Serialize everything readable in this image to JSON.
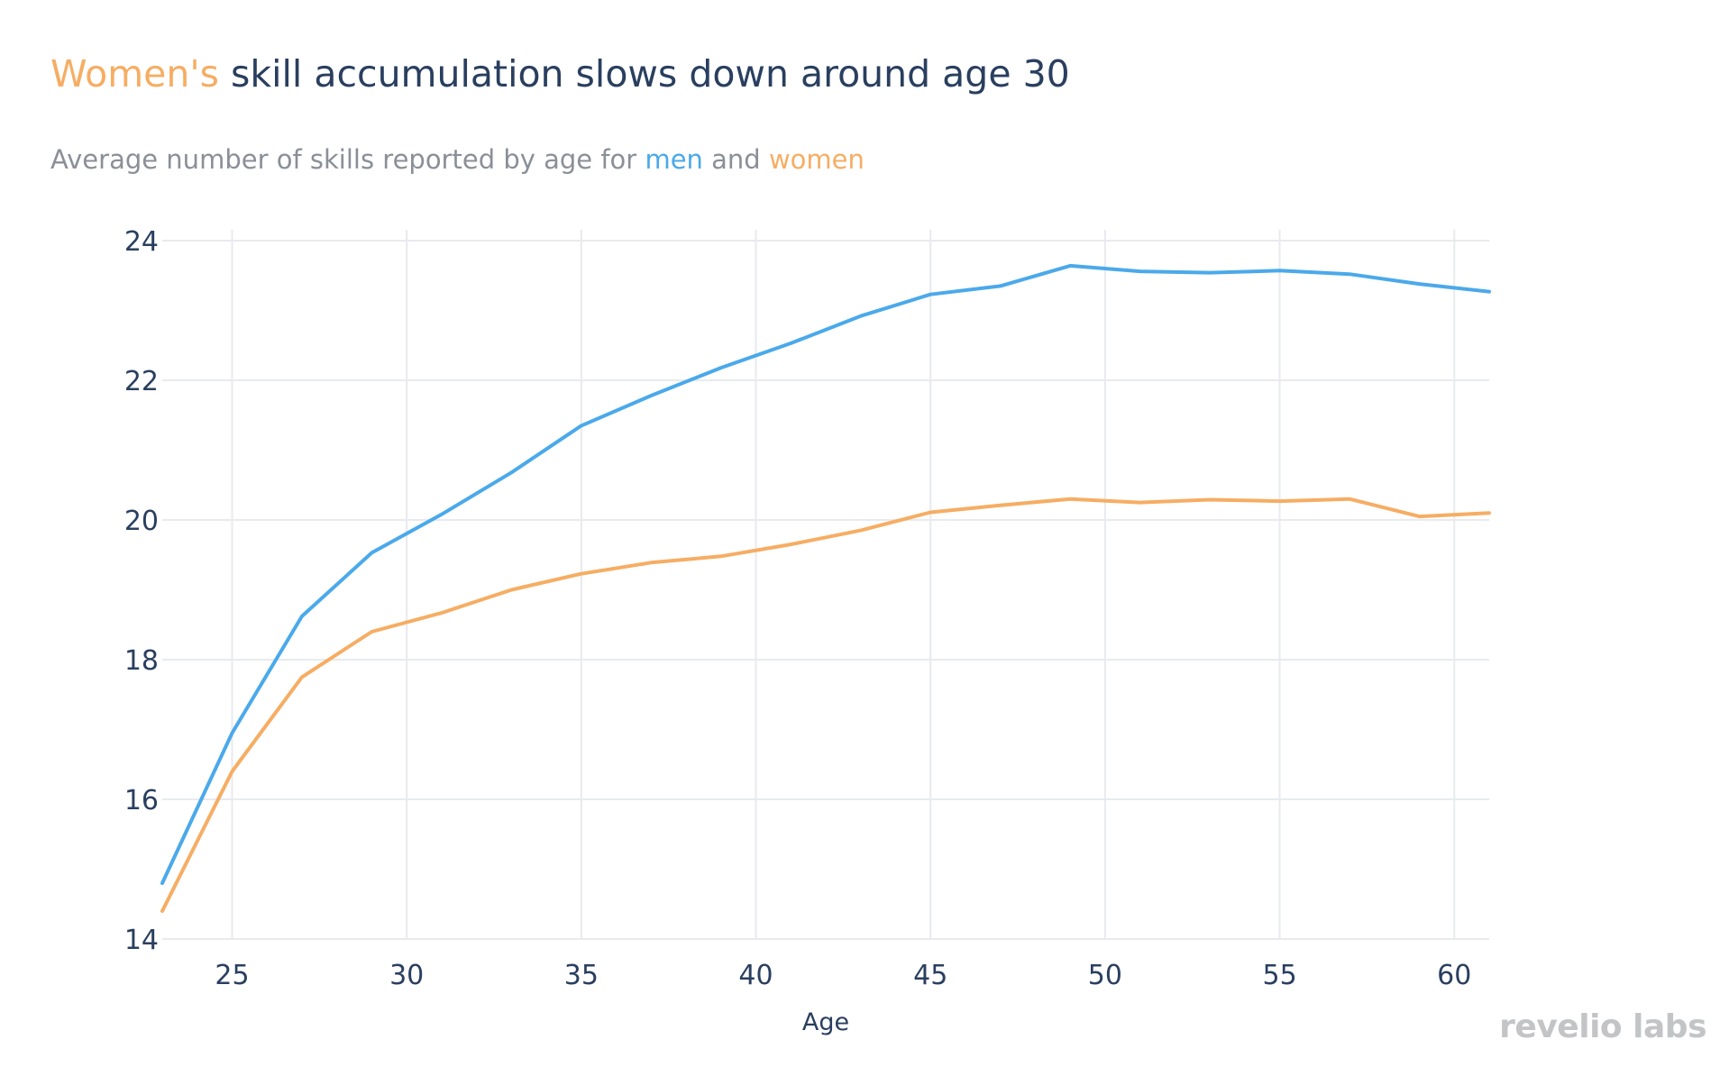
{
  "title": {
    "highlight": "Women's",
    "rest": " skill accumulation slows down around age 30"
  },
  "subtitle": {
    "prefix": "Average number of skills reported by age for ",
    "men": "men",
    "middle": " and ",
    "women": "women"
  },
  "brand": "revelio labs",
  "colors": {
    "men": "#4aa9ea",
    "women": "#f6ad63",
    "title_text": "#2a3f5f",
    "subtitle_text": "#8a8f98",
    "grid": "#e8eaee"
  },
  "chart_data": {
    "type": "line",
    "title": "Women's skill accumulation slows down around age 30",
    "subtitle": "Average number of skills reported by age for men and women",
    "xlabel": "Age",
    "ylabel": "",
    "xlim": [
      23,
      61
    ],
    "ylim": [
      14,
      24
    ],
    "xticks": [
      25,
      30,
      35,
      40,
      45,
      50,
      55,
      60
    ],
    "yticks": [
      14,
      16,
      18,
      20,
      22,
      24
    ],
    "grid": true,
    "x": [
      23,
      25,
      27,
      29,
      31,
      33,
      35,
      37,
      39,
      41,
      43,
      45,
      47,
      49,
      51,
      53,
      55,
      57,
      59,
      61
    ],
    "series": [
      {
        "name": "men",
        "color": "#4aa9ea",
        "values": [
          14.8,
          16.95,
          18.62,
          19.53,
          20.08,
          20.68,
          21.35,
          21.78,
          22.18,
          22.53,
          22.92,
          23.23,
          23.35,
          23.64,
          23.56,
          23.54,
          23.57,
          23.52,
          23.38,
          23.27
        ]
      },
      {
        "name": "women",
        "color": "#f6ad63",
        "values": [
          14.4,
          16.4,
          17.75,
          18.4,
          18.67,
          19.0,
          19.23,
          19.39,
          19.48,
          19.65,
          19.85,
          20.11,
          20.21,
          20.3,
          20.25,
          20.29,
          20.27,
          20.3,
          20.05,
          20.1
        ]
      }
    ]
  }
}
